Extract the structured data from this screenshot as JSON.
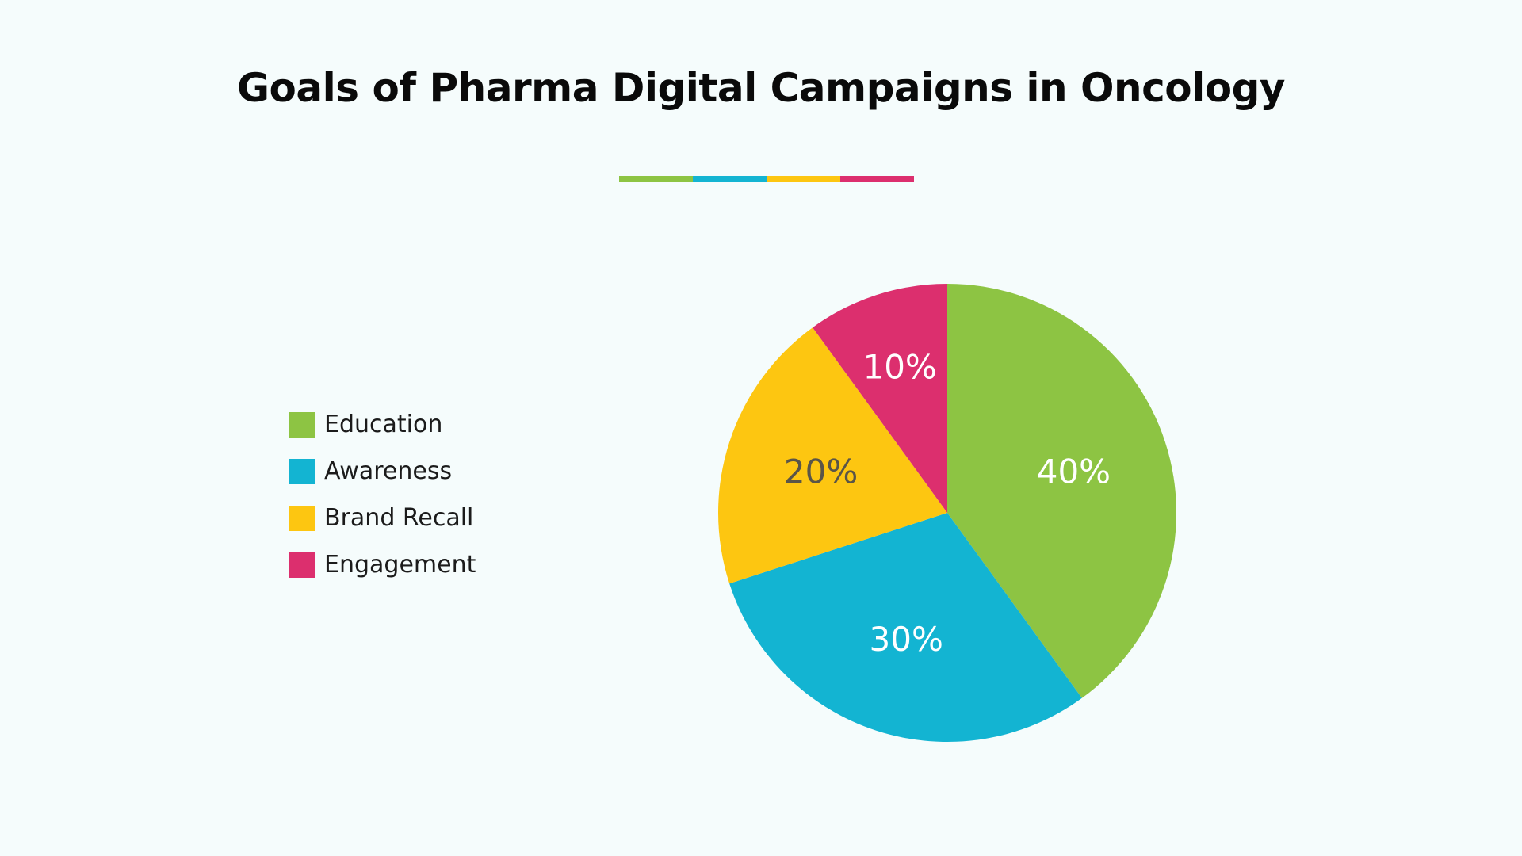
{
  "chart_data": {
    "type": "pie",
    "title": "Goals of Pharma Digital Campaigns in Oncology",
    "categories": [
      "Education",
      "Awareness",
      "Brand Recall",
      "Engagement"
    ],
    "values": [
      40,
      30,
      20,
      10
    ],
    "value_labels": [
      "40%",
      "30%",
      "20%",
      "10%"
    ],
    "colors": [
      "#8dc443",
      "#13b4d2",
      "#fdc611",
      "#dc2f6e"
    ],
    "label_colors": [
      "#ffffff",
      "#ffffff",
      "#5a5548",
      "#ffffff"
    ],
    "start_angle": "12 o'clock",
    "direction": "clockwise",
    "legend_position": "left"
  },
  "title_divider_colors": [
    "#8dc443",
    "#13b4d2",
    "#fdc611",
    "#dc2f6e"
  ]
}
